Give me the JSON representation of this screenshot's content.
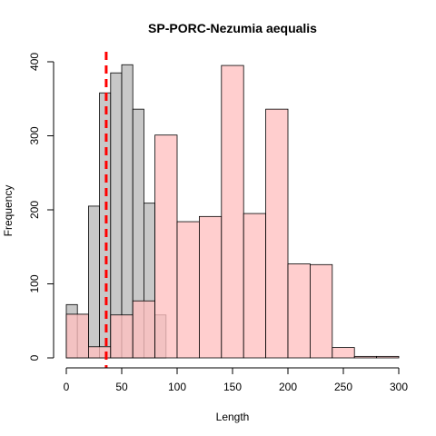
{
  "chart_data": {
    "type": "histogram",
    "title": "SP-PORC-Nezumia aequalis",
    "xlabel": "Length",
    "ylabel": "Frequency",
    "xlim": [
      0,
      300
    ],
    "ylim": [
      0,
      400
    ],
    "xticks": [
      "0",
      "50",
      "100",
      "150",
      "200",
      "250",
      "300"
    ],
    "yticks": [
      "0",
      "100",
      "200",
      "300",
      "400"
    ],
    "grid": false,
    "legend": "none",
    "reference_line": {
      "x": 36,
      "color": "#ff0000",
      "style": "dashed"
    },
    "series": [
      {
        "color": "#bebebe",
        "bins": [
          {
            "x0": 0,
            "x1": 10,
            "count": 72
          },
          {
            "x0": 10,
            "x1": 20,
            "count": 59
          },
          {
            "x0": 20,
            "x1": 30,
            "count": 205
          },
          {
            "x0": 30,
            "x1": 40,
            "count": 358
          },
          {
            "x0": 40,
            "x1": 50,
            "count": 385
          },
          {
            "x0": 50,
            "x1": 60,
            "count": 396
          },
          {
            "x0": 60,
            "x1": 70,
            "count": 336
          },
          {
            "x0": 70,
            "x1": 80,
            "count": 209
          },
          {
            "x0": 80,
            "x1": 90,
            "count": 58
          }
        ]
      },
      {
        "color": "#ffc0c0",
        "bins": [
          {
            "x0": 0,
            "x1": 20,
            "count": 59
          },
          {
            "x0": 20,
            "x1": 40,
            "count": 15
          },
          {
            "x0": 40,
            "x1": 60,
            "count": 58
          },
          {
            "x0": 60,
            "x1": 80,
            "count": 77
          },
          {
            "x0": 80,
            "x1": 100,
            "count": 301
          },
          {
            "x0": 100,
            "x1": 120,
            "count": 184
          },
          {
            "x0": 120,
            "x1": 140,
            "count": 191
          },
          {
            "x0": 140,
            "x1": 160,
            "count": 395
          },
          {
            "x0": 160,
            "x1": 180,
            "count": 195
          },
          {
            "x0": 180,
            "x1": 200,
            "count": 336
          },
          {
            "x0": 200,
            "x1": 220,
            "count": 127
          },
          {
            "x0": 220,
            "x1": 240,
            "count": 126
          },
          {
            "x0": 240,
            "x1": 260,
            "count": 14
          },
          {
            "x0": 260,
            "x1": 280,
            "count": 2
          },
          {
            "x0": 280,
            "x1": 300,
            "count": 2
          }
        ]
      }
    ]
  }
}
